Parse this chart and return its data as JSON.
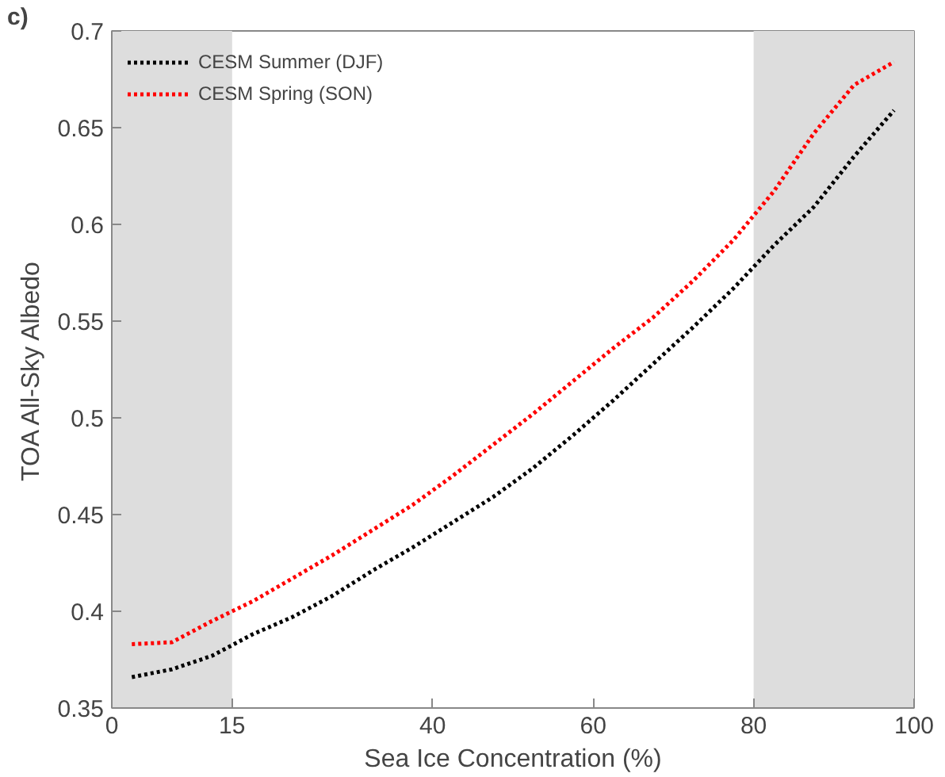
{
  "chart_data": {
    "type": "line",
    "xlabel": "Sea Ice Concentration (%)",
    "ylabel": "TOA All-Sky Albedo",
    "annotations": [
      "c)"
    ],
    "x": [
      2.5,
      7.5,
      12.5,
      17.5,
      22.5,
      27.5,
      32.5,
      37.5,
      42.5,
      47.5,
      52.5,
      57.5,
      62.5,
      67.5,
      72.5,
      77.5,
      82.5,
      87.5,
      92.5,
      97.5
    ],
    "series": [
      {
        "name": "CESM Summer (DJF)",
        "color": "#000000",
        "values": [
          0.366,
          0.37,
          0.377,
          0.388,
          0.397,
          0.408,
          0.421,
          0.433,
          0.446,
          0.459,
          0.474,
          0.491,
          0.509,
          0.528,
          0.547,
          0.567,
          0.589,
          0.609,
          0.635,
          0.659
        ]
      },
      {
        "name": "CESM Spring (SON)",
        "color": "#ff0000",
        "values": [
          0.383,
          0.384,
          0.395,
          0.405,
          0.417,
          0.429,
          0.442,
          0.455,
          0.47,
          0.486,
          0.502,
          0.519,
          0.536,
          0.552,
          0.571,
          0.592,
          0.617,
          0.647,
          0.672,
          0.684
        ]
      }
    ],
    "xlim": [
      0,
      100
    ],
    "xticks": [
      0,
      15,
      40,
      60,
      80,
      100
    ],
    "ylim": [
      0.35,
      0.7
    ],
    "yticks": [
      0.35,
      0.4,
      0.45,
      0.5,
      0.55,
      0.6,
      0.65,
      0.7
    ],
    "bands": [
      {
        "axis": "x",
        "from": 0,
        "to": 15,
        "label": null,
        "color": "#dddddd"
      },
      {
        "axis": "x",
        "from": 80,
        "to": 100,
        "label": null,
        "color": "#dddddd"
      }
    ],
    "line_style": "dotted",
    "marker": "none",
    "grid": false,
    "legend": "top left"
  }
}
